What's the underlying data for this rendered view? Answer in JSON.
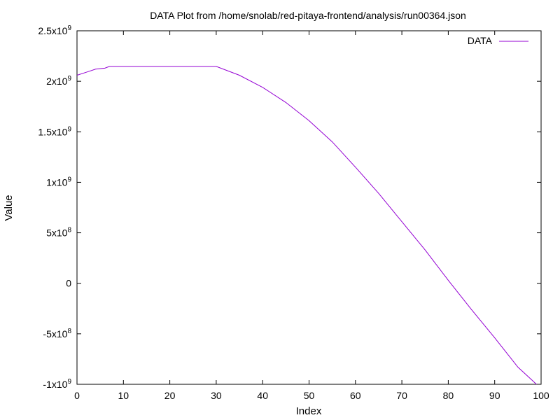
{
  "chart_data": {
    "type": "line",
    "title": "DATA Plot from /home/snolab/red-pitaya-frontend/analysis/run00364.json",
    "xlabel": "Index",
    "ylabel": "Value",
    "xlim": [
      0,
      100
    ],
    "ylim": [
      -1000000000,
      2500000000
    ],
    "x_ticks": [
      {
        "value": 0,
        "label": "0"
      },
      {
        "value": 10,
        "label": "10"
      },
      {
        "value": 20,
        "label": "20"
      },
      {
        "value": 30,
        "label": "30"
      },
      {
        "value": 40,
        "label": "40"
      },
      {
        "value": 50,
        "label": "50"
      },
      {
        "value": 60,
        "label": "60"
      },
      {
        "value": 70,
        "label": "70"
      },
      {
        "value": 80,
        "label": "80"
      },
      {
        "value": 90,
        "label": "90"
      },
      {
        "value": 100,
        "label": "100"
      }
    ],
    "y_ticks": [
      {
        "value": -1000000000,
        "mantissa": "-1x10",
        "exp": "9"
      },
      {
        "value": -500000000,
        "mantissa": "-5x10",
        "exp": "8"
      },
      {
        "value": 0,
        "mantissa": "0",
        "exp": ""
      },
      {
        "value": 500000000,
        "mantissa": "5x10",
        "exp": "8"
      },
      {
        "value": 1000000000,
        "mantissa": "1x10",
        "exp": "9"
      },
      {
        "value": 1500000000,
        "mantissa": "1.5x10",
        "exp": "9"
      },
      {
        "value": 2000000000,
        "mantissa": "2x10",
        "exp": "9"
      },
      {
        "value": 2500000000,
        "mantissa": "2.5x10",
        "exp": "9"
      }
    ],
    "grid": false,
    "legend": {
      "position": "top-right"
    },
    "series": [
      {
        "name": "DATA",
        "color": "#9400d3",
        "x": [
          0,
          2,
          4,
          6,
          7,
          10,
          15,
          20,
          25,
          30,
          35,
          40,
          45,
          50,
          55,
          60,
          65,
          70,
          75,
          80,
          85,
          90,
          95,
          99
        ],
        "y": [
          2060000000,
          2090000000,
          2120000000,
          2130000000,
          2147000000,
          2147000000,
          2147000000,
          2147000000,
          2147000000,
          2147000000,
          2060000000,
          1940000000,
          1790000000,
          1610000000,
          1400000000,
          1150000000,
          890000000,
          610000000,
          330000000,
          30000000,
          -260000000,
          -540000000,
          -830000000,
          -1000000000
        ]
      }
    ]
  }
}
